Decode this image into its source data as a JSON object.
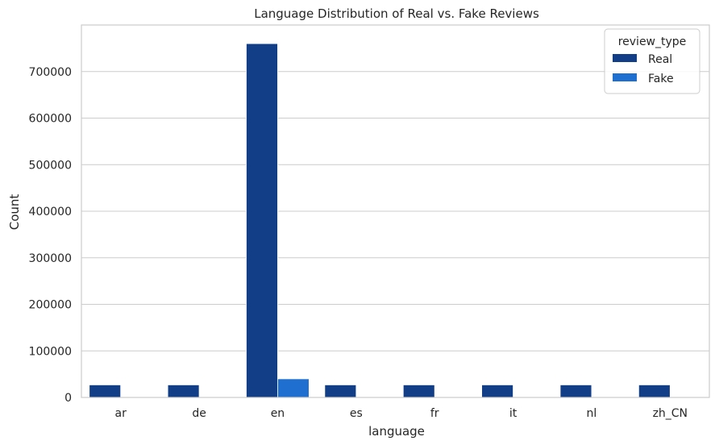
{
  "chart_data": {
    "type": "bar",
    "title": "Language Distribution of Real vs. Fake Reviews",
    "xlabel": "language",
    "ylabel": "Count",
    "categories": [
      "ar",
      "de",
      "en",
      "es",
      "fr",
      "it",
      "nl",
      "zh_CN"
    ],
    "series": [
      {
        "name": "Real",
        "color": "#123d87",
        "values": [
          27000,
          27000,
          760000,
          27000,
          27000,
          27000,
          27000,
          27000
        ]
      },
      {
        "name": "Fake",
        "color": "#1f6fd1",
        "values": [
          0,
          0,
          40000,
          0,
          0,
          0,
          0,
          0
        ]
      }
    ],
    "ylim": [
      0,
      800000
    ],
    "yticks": [
      0,
      100000,
      200000,
      300000,
      400000,
      500000,
      600000,
      700000
    ],
    "ytick_labels": [
      "0",
      "100000",
      "200000",
      "300000",
      "400000",
      "500000",
      "600000",
      "700000"
    ],
    "legend": {
      "title": "review_type",
      "placement": "top-right"
    },
    "grid": true
  }
}
